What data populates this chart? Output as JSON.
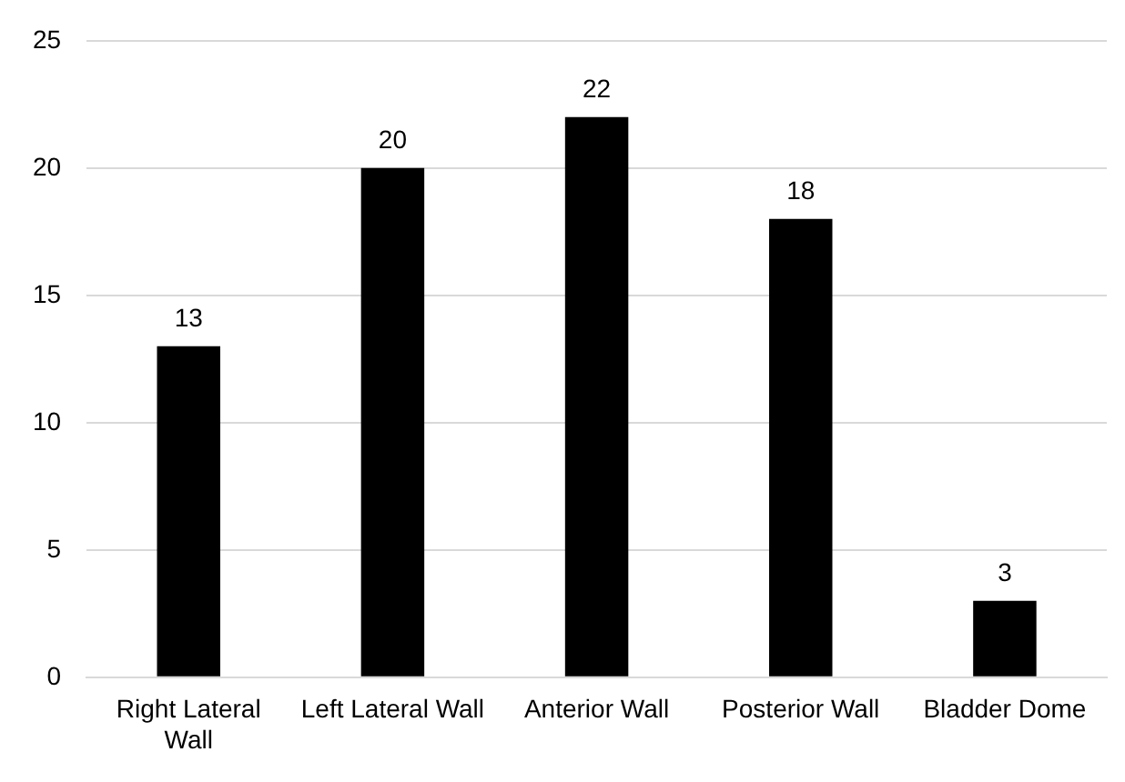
{
  "chart_data": {
    "type": "bar",
    "categories": [
      "Right Lateral Wall",
      "Left Lateral Wall",
      "Anterior Wall",
      "Posterior Wall",
      "Bladder Dome"
    ],
    "values": [
      13,
      20,
      22,
      18,
      3
    ],
    "color": "#000000",
    "ylim": [
      0,
      25
    ],
    "yticks": [
      0,
      5,
      10,
      15,
      20,
      25
    ],
    "grid": "y",
    "legend": false,
    "data_labels": true
  }
}
